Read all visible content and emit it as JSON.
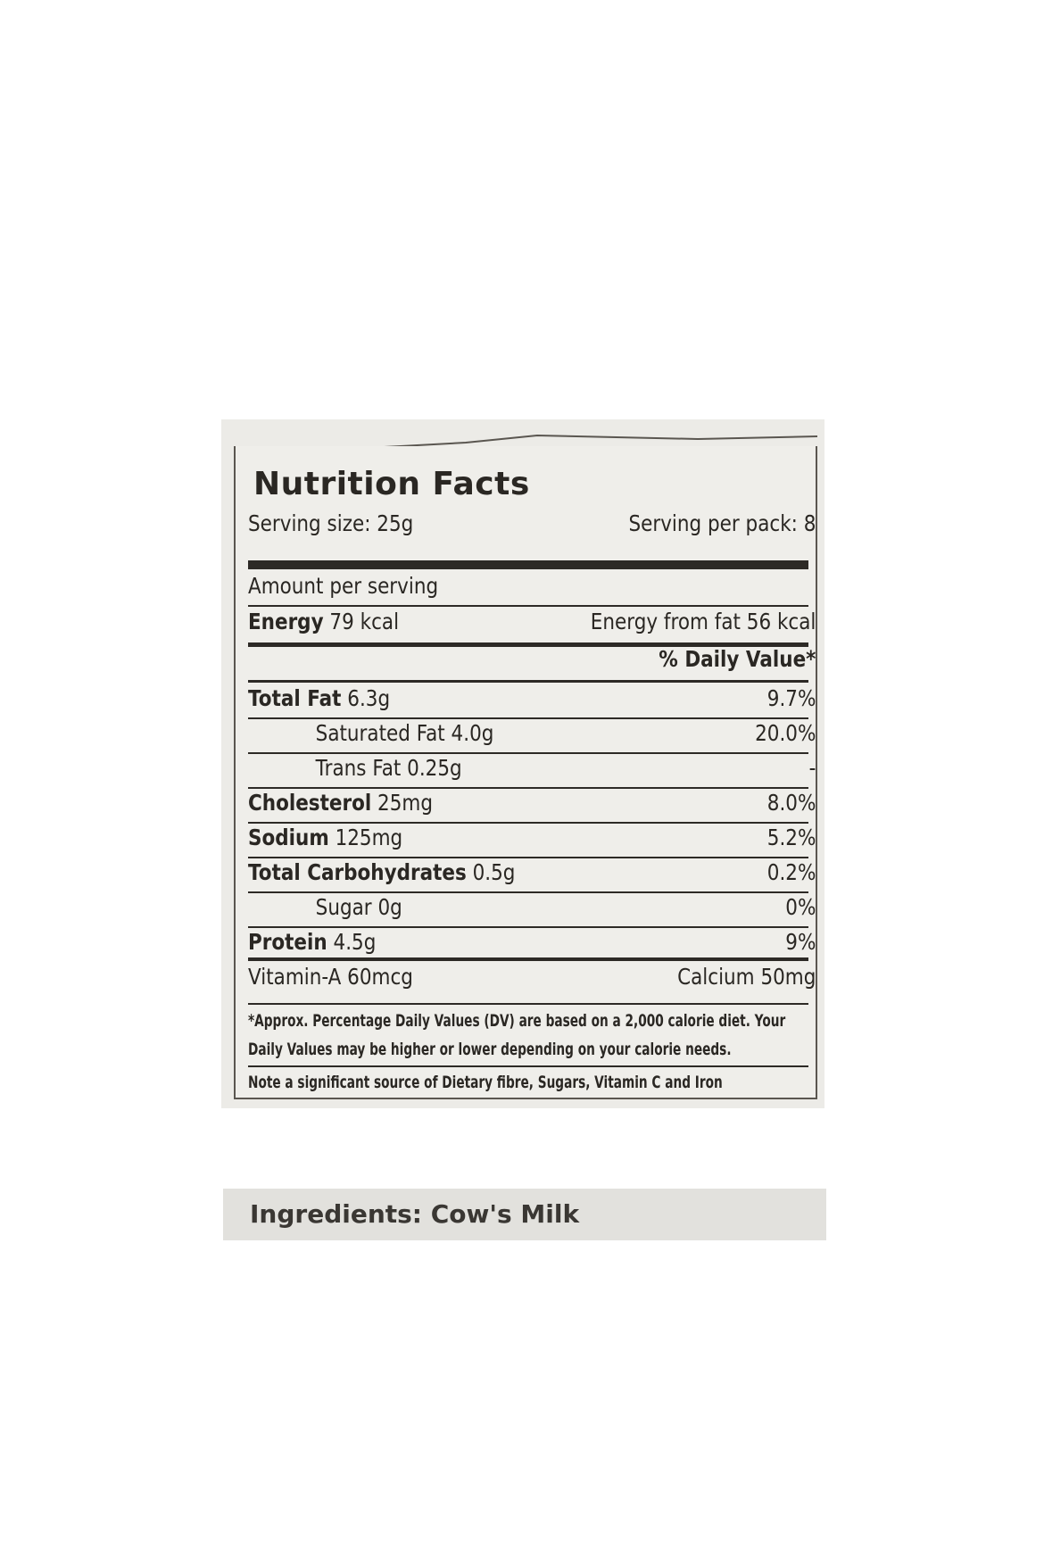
{
  "label": {
    "title": "Nutrition Facts",
    "serving_size": "Serving size: 25g",
    "servings_per_pack": "Serving per pack: 8",
    "amount_per_serving": "Amount per serving",
    "energy": {
      "name": "Energy",
      "value": "79 kcal"
    },
    "energy_from_fat": "Energy from fat 56 kcal",
    "daily_value_header": "% Daily Value*",
    "nutrients": [
      {
        "name": "Total Fat",
        "amount": "6.3g",
        "dv": "9.7%",
        "bold": true
      },
      {
        "name": "Saturated Fat",
        "amount": "4.0g",
        "dv": "20.0%",
        "bold": false
      },
      {
        "name": "Trans Fat",
        "amount": "0.25g",
        "dv": "-",
        "bold": false
      },
      {
        "name": "Cholesterol",
        "amount": "25mg",
        "dv": "8.0%",
        "bold": true
      },
      {
        "name": "Sodium",
        "amount": "125mg",
        "dv": "5.2%",
        "bold": true
      },
      {
        "name": "Total Carbohydrates",
        "amount": "0.5g",
        "dv": "0.2%",
        "bold": true
      },
      {
        "name": "Sugar",
        "amount": "0g",
        "dv": "0%",
        "bold": false
      },
      {
        "name": "Protein",
        "amount": "4.5g",
        "dv": "9%",
        "bold": true
      }
    ],
    "vitamin_a": "Vitamin-A 60mcg",
    "calcium": "Calcium 50mg",
    "footnote": "*Approx. Percentage Daily Values (DV) are based on a 2,000 calorie diet. Your Daily Values may be higher or lower depending on your calorie needs.",
    "note": "Note a significant source of Dietary fibre, Sugars, Vitamin C and Iron"
  },
  "ingredients": "Ingredients: Cow's Milk"
}
